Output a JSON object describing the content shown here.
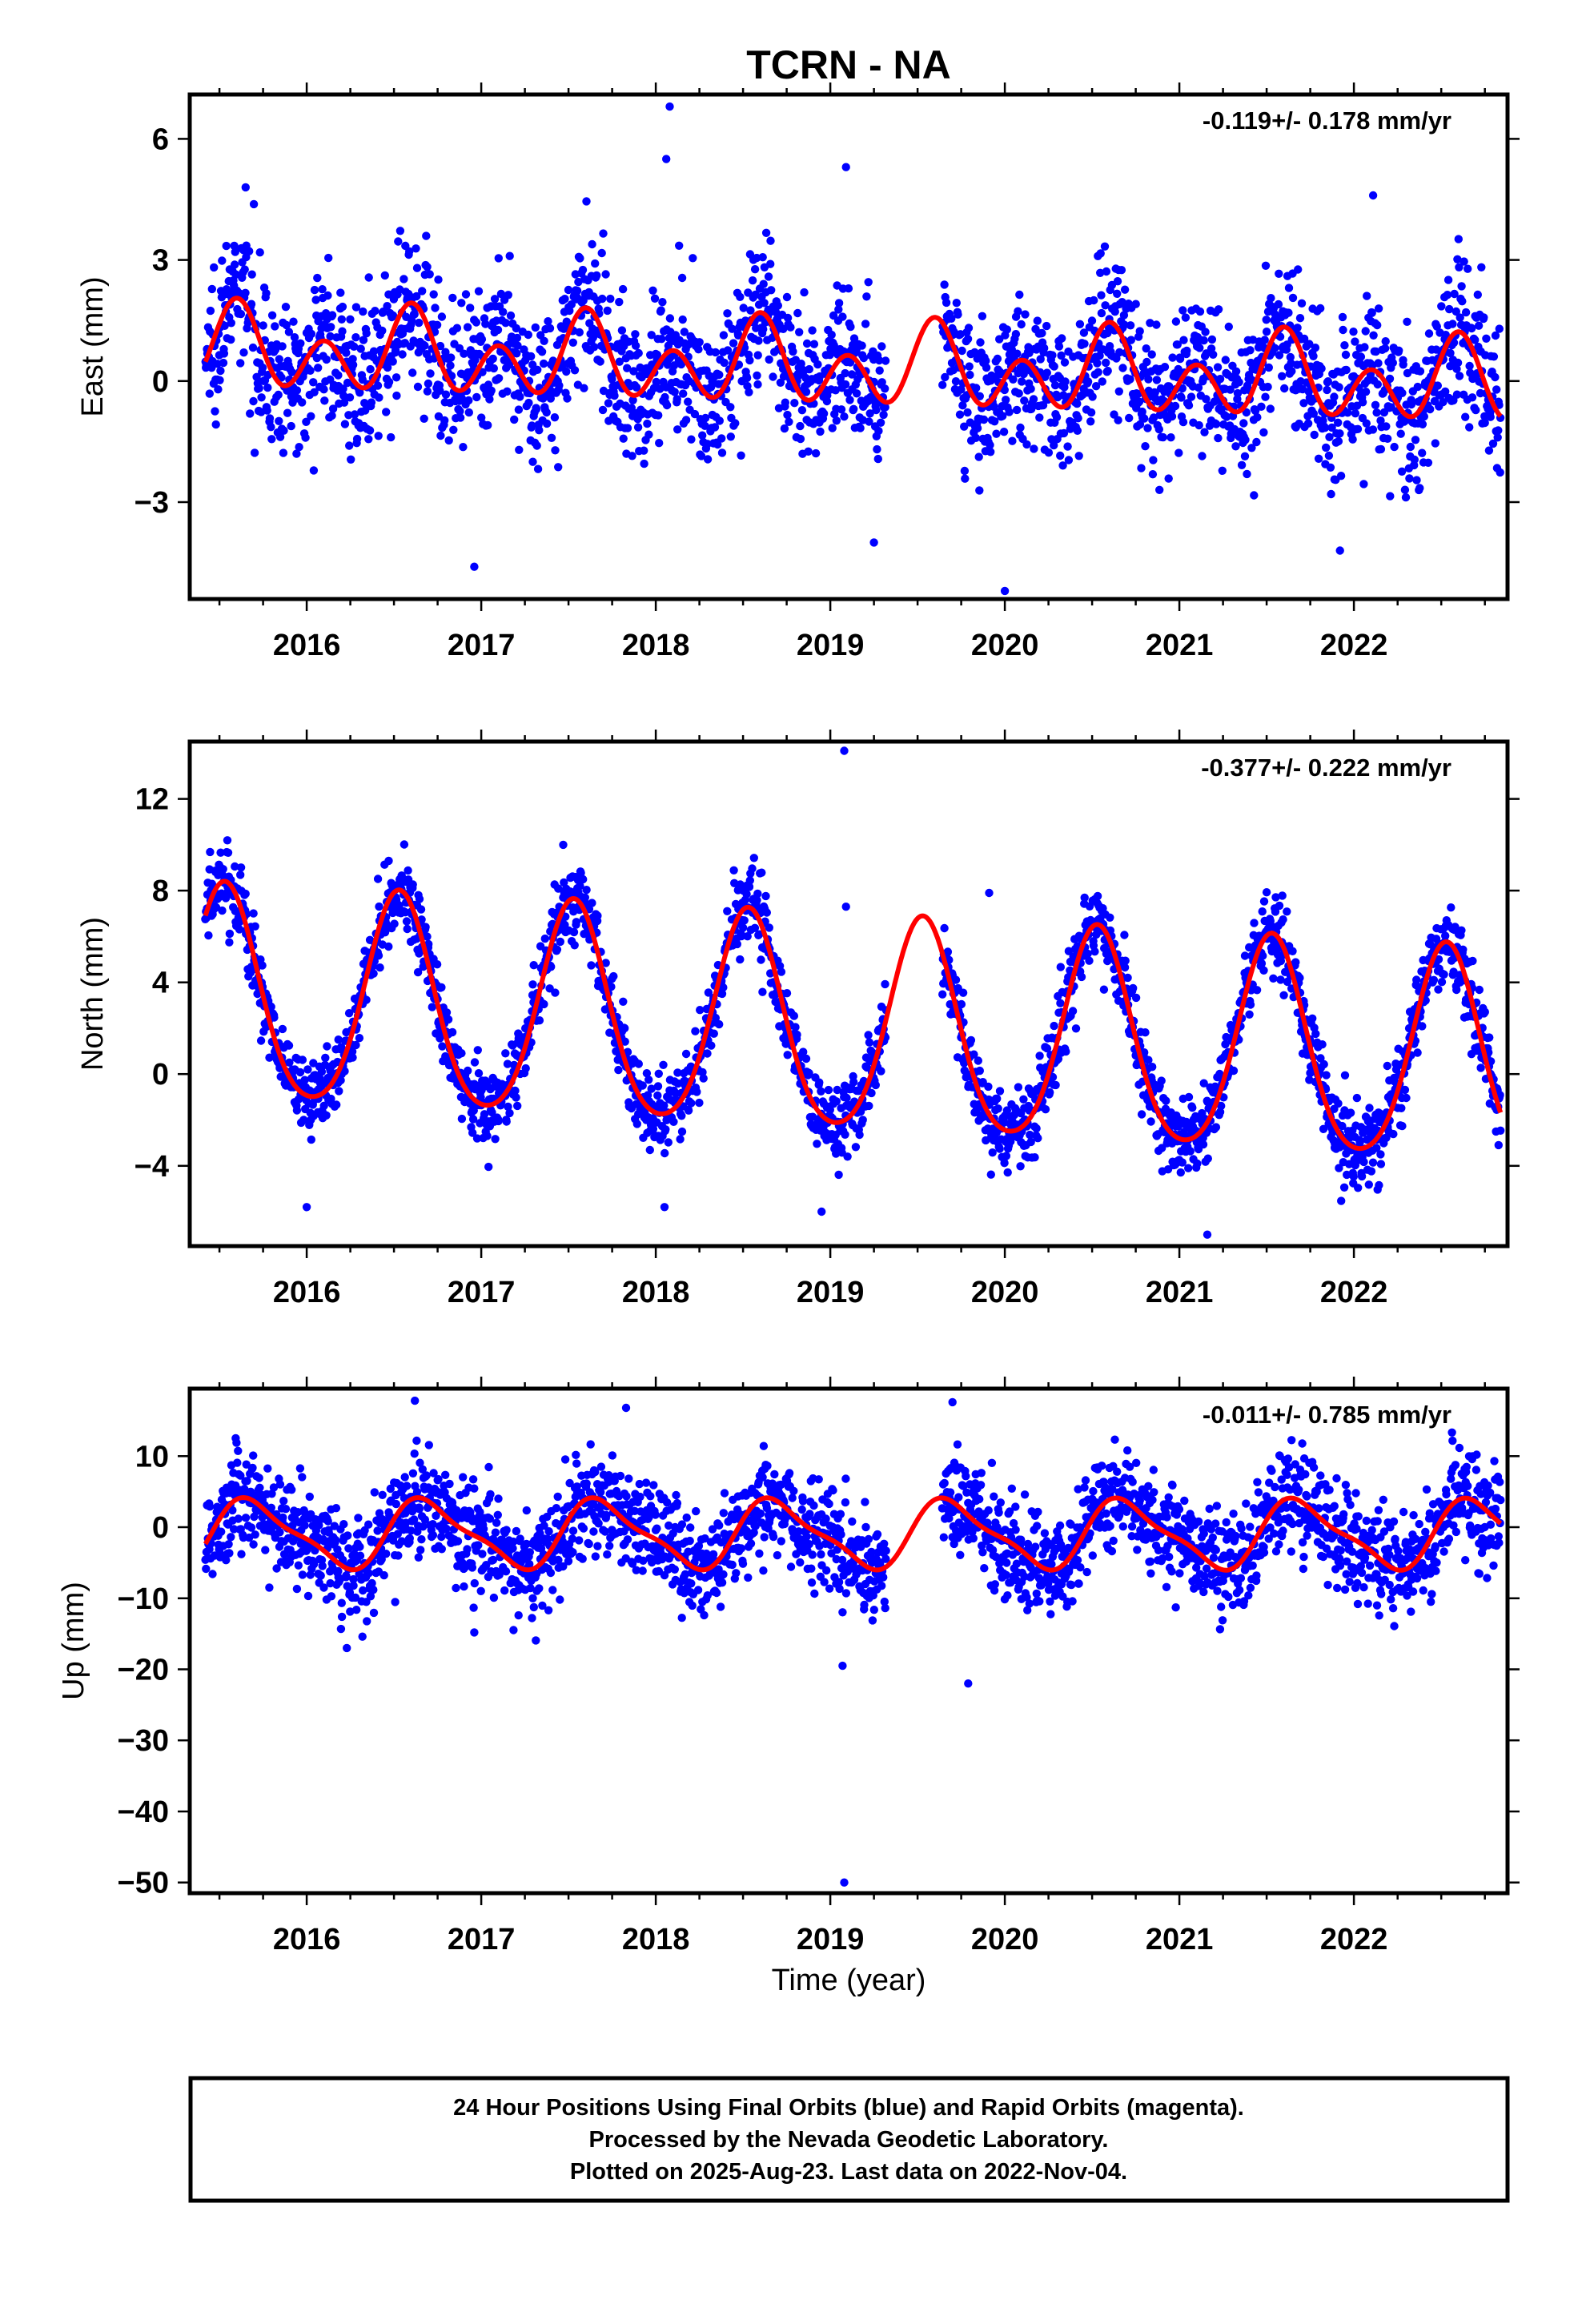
{
  "chart_data": {
    "type": "scatter",
    "title": "TCRN - NA",
    "xlabel": "Time (year)",
    "xlim": [
      2015.33,
      2022.88
    ],
    "x_ticks": [
      "2016",
      "2017",
      "2018",
      "2019",
      "2020",
      "2021",
      "2022"
    ],
    "grid": false,
    "panels": [
      {
        "ylabel": "East (mm)",
        "ylim": [
          -5.4,
          7.1
        ],
        "y_ticks": [
          6,
          3,
          0,
          -3
        ],
        "y_tick_labels": [
          "6",
          "3",
          "0",
          "−3"
        ],
        "rate_label": "-0.119+/- 0.178 mm/yr",
        "data_span": [
          2015.42,
          2022.84
        ],
        "gaps": [
          [
            2019.32,
            2019.64
          ]
        ],
        "model": {
          "offset": 0.35,
          "trend": -0.119,
          "annual_amp": 0.5,
          "annual_peak": 2015.6,
          "semiannual_amp": 0.8,
          "semiannual_peak": 2015.6
        },
        "scatter_sd": 0.9,
        "point_count": 2560,
        "outliers": [
          [
            2018.08,
            6.8
          ],
          [
            2018.06,
            5.5
          ],
          [
            2019.09,
            5.3
          ],
          [
            2016.96,
            -4.6
          ],
          [
            2020.0,
            -5.2
          ],
          [
            2021.92,
            -4.2
          ],
          [
            2019.25,
            -4.0
          ],
          [
            2022.11,
            4.6
          ],
          [
            2015.65,
            4.8
          ]
        ]
      },
      {
        "ylabel": "North (mm)",
        "ylim": [
          -7.5,
          14.5
        ],
        "y_ticks": [
          12,
          8,
          4,
          0,
          -4
        ],
        "y_tick_labels": [
          "12",
          "8",
          "4",
          "0",
          "−4"
        ],
        "rate_label": "-0.377+/- 0.222 mm/yr",
        "data_span": [
          2015.42,
          2022.84
        ],
        "gaps": [
          [
            2019.32,
            2019.64
          ]
        ],
        "model": {
          "offset": 1.9,
          "trend": -0.377,
          "annual_amp": 4.6,
          "annual_peak": 2015.53,
          "semiannual_amp": 0.6,
          "semiannual_peak": 2015.53
        },
        "scatter_sd": 0.85,
        "point_count": 2560,
        "outliers": [
          [
            2019.08,
            14.1
          ],
          [
            2017.47,
            10.0
          ],
          [
            2016.47,
            9.3
          ],
          [
            2019.09,
            7.3
          ],
          [
            2019.91,
            7.9
          ],
          [
            2021.16,
            -7.0
          ],
          [
            2016.0,
            -5.8
          ],
          [
            2018.05,
            -5.8
          ],
          [
            2018.95,
            -6.0
          ]
        ]
      },
      {
        "ylabel": "Up (mm)",
        "ylim": [
          -51.5,
          19.5
        ],
        "y_ticks": [
          10,
          0,
          -10,
          -20,
          -30,
          -40,
          -50
        ],
        "y_tick_labels": [
          "10",
          "0",
          "−10",
          "−20",
          "−30",
          "−40",
          "−50"
        ],
        "rate_label": "-0.011+/- 0.785 mm/yr",
        "data_span": [
          2015.42,
          2022.84
        ],
        "gaps": [
          [
            2019.32,
            2019.64
          ]
        ],
        "model": {
          "offset": -1.0,
          "trend": -0.011,
          "annual_amp": 4.5,
          "annual_peak": 2015.7,
          "semiannual_amp": 1.3,
          "semiannual_peak": 2015.58
        },
        "scatter_sd": 3.6,
        "point_count": 2560,
        "outliers": [
          [
            2019.08,
            -50.0
          ],
          [
            2019.79,
            -22.0
          ],
          [
            2016.23,
            -17.0
          ],
          [
            2019.07,
            -19.5
          ],
          [
            2016.96,
            -14.8
          ],
          [
            2016.62,
            17.8
          ],
          [
            2019.7,
            17.6
          ],
          [
            2017.83,
            16.8
          ]
        ]
      }
    ],
    "series": [
      {
        "name": "Final Orbits (blue)",
        "color": "#0000ff",
        "kind": "daily positions"
      },
      {
        "name": "",
        "color": "#ff0000",
        "kind": "model fit"
      }
    ]
  },
  "footer": {
    "line1": "24 Hour Positions Using Final Orbits (blue) and Rapid Orbits (magenta).",
    "line2": "Processed by the Nevada Geodetic Laboratory.",
    "line3": "Plotted on 2025-Aug-23. Last data on 2022-Nov-04."
  }
}
